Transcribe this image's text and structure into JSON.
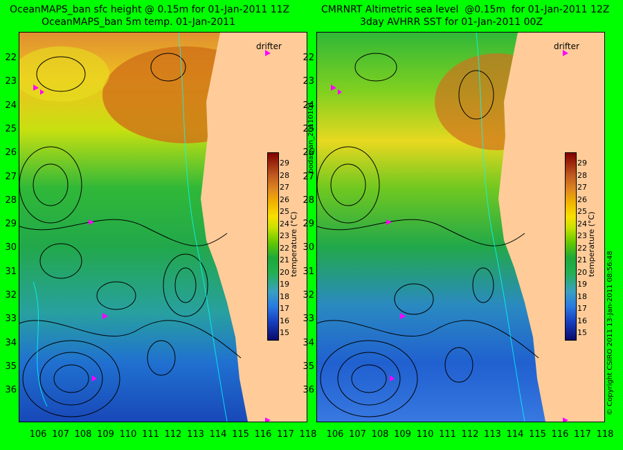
{
  "titles": {
    "left_line1": "OceanMAPS_ban sfc height @ 0.15m for 01-Jan-2011 11Z",
    "left_line2": "OceanMAPS_ban 5m temp. 01-Jan-2011",
    "right_line1": "CMRNRT Altimetric sea level  @0.15m  for 01-Jan-2011 12Z",
    "right_line2": "3day AVHRR SST for 01-Jan-2011 00Z"
  },
  "axes": {
    "lat_labels": [
      "22",
      "23",
      "24",
      "25",
      "26",
      "27",
      "28",
      "29",
      "30",
      "31",
      "32",
      "33",
      "34",
      "35",
      "36"
    ],
    "lon_labels": [
      "106",
      "107",
      "108",
      "109",
      "110",
      "111",
      "112",
      "113",
      "114",
      "115",
      "116",
      "117",
      "118"
    ]
  },
  "colorbar": {
    "ticks": [
      "29",
      "28",
      "27",
      "26",
      "25",
      "24",
      "23",
      "22",
      "21",
      "20",
      "19",
      "18",
      "17",
      "16",
      "15"
    ],
    "title": "temperature (°C)"
  },
  "drifter_label": "drifter",
  "side_label_middle": "bodas_an_20110101",
  "side_label_right": "© Copyright CSIRO 2011   13-Jan-2011 08:56:48",
  "colors": {
    "background": "#00ff00",
    "land": "#ffcc99",
    "drifter": "#ff00ff",
    "contour": "#000000",
    "cyan_contour": "#00ffff"
  }
}
